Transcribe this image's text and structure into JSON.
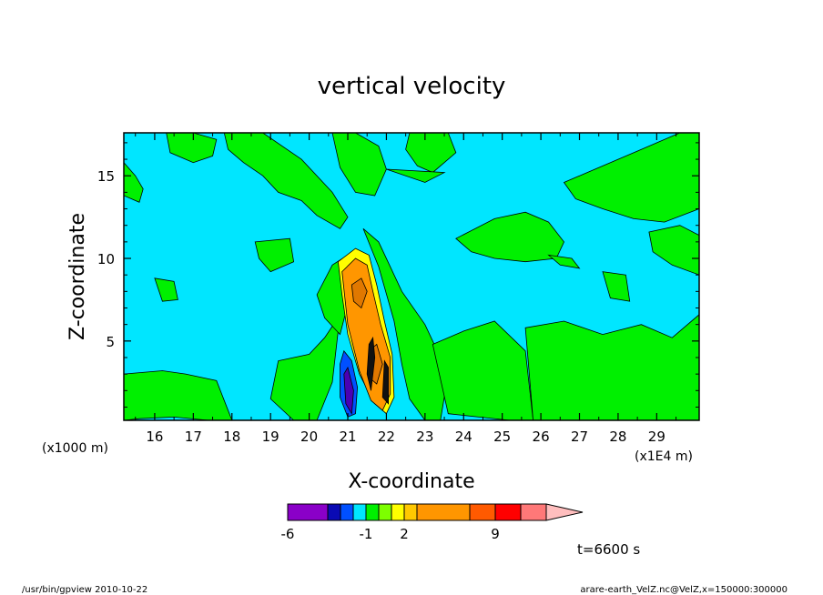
{
  "chart_data": {
    "type": "heatmap",
    "title": "vertical velocity",
    "xlabel": "X-coordinate",
    "ylabel": "Z-coordinate",
    "x_unit": "(x1E4 m)",
    "y_unit": "(x1000 m)",
    "xlim": [
      15.2,
      30.1
    ],
    "ylim": [
      0.2,
      17.6
    ],
    "x_ticks": [
      16,
      17,
      18,
      19,
      20,
      21,
      22,
      23,
      24,
      25,
      26,
      27,
      28,
      29
    ],
    "y_ticks": [
      5,
      10,
      15
    ],
    "time_label": "t=6600 s",
    "colorbar": {
      "colors": [
        "#8a00c8",
        "#0a0ab4",
        "#0050ff",
        "#00e6ff",
        "#00f000",
        "#7dff00",
        "#ffff00",
        "#ffc800",
        "#ff9600",
        "#ff5a00",
        "#ff0000",
        "#ff7878",
        "#ffbebe"
      ],
      "labels": [
        {
          "text": "-6",
          "value": -6
        },
        {
          "text": "-1",
          "value": -1
        },
        {
          "text": "2",
          "value": 2
        },
        {
          "text": "9",
          "value": 9
        }
      ]
    },
    "background_color": "#00e6ff",
    "regions": [
      {
        "level": "green",
        "color": "#00f000",
        "x": [
          15.2,
          15.5,
          15.7,
          15.6,
          15.2
        ],
        "y": [
          15.8,
          15.0,
          14.2,
          13.4,
          13.8
        ]
      },
      {
        "level": "green",
        "color": "#00f000",
        "x": [
          16.3,
          17.0,
          17.6,
          17.5,
          17.0,
          16.4
        ],
        "y": [
          17.6,
          17.6,
          17.2,
          16.2,
          15.8,
          16.4
        ]
      },
      {
        "level": "green",
        "color": "#00f000",
        "x": [
          17.8,
          18.8,
          19.8,
          20.6,
          21.0,
          20.8,
          20.2,
          19.8,
          19.2,
          18.8,
          18.3,
          17.9
        ],
        "y": [
          17.6,
          17.6,
          16.0,
          14.0,
          12.5,
          11.8,
          12.6,
          13.5,
          14.0,
          15.0,
          15.8,
          16.6
        ]
      },
      {
        "level": "green",
        "color": "#00f000",
        "x": [
          20.6,
          21.2,
          21.8,
          22.0,
          21.7,
          21.2,
          20.8
        ],
        "y": [
          17.6,
          17.6,
          16.8,
          15.4,
          13.8,
          14.0,
          15.5
        ]
      },
      {
        "level": "green",
        "color": "#00f000",
        "x": [
          22.6,
          23.6,
          23.8,
          23.2,
          22.8,
          22.5
        ],
        "y": [
          17.6,
          17.6,
          16.4,
          15.2,
          15.6,
          16.6
        ]
      },
      {
        "level": "green",
        "color": "#00f000",
        "x": [
          18.6,
          19.5,
          19.6,
          19.0,
          18.7
        ],
        "y": [
          11.0,
          11.2,
          9.8,
          9.2,
          10.0
        ]
      },
      {
        "level": "green",
        "color": "#00f000",
        "x": [
          16.0,
          16.5,
          16.6,
          16.2
        ],
        "y": [
          8.8,
          8.6,
          7.5,
          7.4
        ]
      },
      {
        "level": "green",
        "color": "#00f000",
        "x": [
          15.2,
          15.6,
          15.7,
          15.2
        ],
        "y": [
          1.8,
          2.6,
          0.5,
          0.2
        ]
      },
      {
        "level": "green",
        "color": "#00f000",
        "x": [
          15.2,
          16.2,
          16.8,
          17.6,
          18.0,
          17.4,
          16.5,
          15.6,
          15.2
        ],
        "y": [
          3.0,
          3.2,
          3.0,
          2.6,
          0.2,
          0.2,
          0.4,
          0.3,
          0.2
        ]
      },
      {
        "level": "green",
        "color": "#00f000",
        "x": [
          19.2,
          20.0,
          20.4,
          20.8,
          20.6,
          20.2,
          19.6,
          19.0
        ],
        "y": [
          3.8,
          4.2,
          5.2,
          6.6,
          2.5,
          0.2,
          0.2,
          1.5
        ]
      },
      {
        "level": "green",
        "color": "#00f000",
        "x": [
          20.2,
          20.4,
          20.8,
          21.2,
          21.0,
          20.6
        ],
        "y": [
          7.8,
          6.4,
          5.4,
          9.0,
          10.2,
          9.6
        ]
      },
      {
        "level": "green",
        "color": "#00f000",
        "x": [
          21.4,
          21.8,
          22.4,
          23.0,
          23.6,
          23.4,
          23.0,
          22.6,
          22.4,
          22.2,
          21.8
        ],
        "y": [
          11.8,
          11.0,
          8.0,
          6.0,
          3.0,
          0.2,
          0.2,
          1.5,
          3.6,
          6.2,
          9.5
        ]
      },
      {
        "level": "green",
        "color": "#00f000",
        "x": [
          23.2,
          24.0,
          24.8,
          25.6,
          25.8,
          25.2,
          24.4,
          23.6
        ],
        "y": [
          4.8,
          5.6,
          6.2,
          4.4,
          0.2,
          0.2,
          0.4,
          0.6
        ]
      },
      {
        "level": "green",
        "color": "#00f000",
        "x": [
          23.8,
          24.8,
          25.6,
          26.2,
          26.6,
          26.4,
          25.6,
          24.8,
          24.2
        ],
        "y": [
          11.2,
          12.4,
          12.8,
          12.2,
          11.0,
          10.0,
          9.8,
          10.0,
          10.4
        ]
      },
      {
        "level": "green",
        "color": "#00f000",
        "x": [
          26.6,
          27.4,
          28.6,
          29.6,
          30.1,
          30.1,
          29.2,
          28.4,
          27.6,
          26.9
        ],
        "y": [
          14.6,
          15.4,
          16.6,
          17.6,
          17.6,
          13.0,
          12.2,
          12.4,
          13.0,
          13.6
        ]
      },
      {
        "level": "green",
        "color": "#00f000",
        "x": [
          28.8,
          29.6,
          30.1,
          30.1,
          29.4,
          28.9
        ],
        "y": [
          11.6,
          12.0,
          11.4,
          9.0,
          9.6,
          10.4
        ]
      },
      {
        "level": "green",
        "color": "#00f000",
        "x": [
          26.2,
          26.8,
          27.0,
          26.5
        ],
        "y": [
          10.2,
          10.0,
          9.4,
          9.6
        ]
      },
      {
        "level": "green",
        "color": "#00f000",
        "x": [
          27.6,
          28.2,
          28.3,
          27.8
        ],
        "y": [
          9.2,
          9.0,
          7.4,
          7.6
        ]
      },
      {
        "level": "green",
        "color": "#00f000",
        "x": [
          25.6,
          26.6,
          27.6,
          28.6,
          29.4,
          30.1,
          30.1,
          29.0,
          27.8,
          26.6,
          25.8
        ],
        "y": [
          5.8,
          6.2,
          5.4,
          6.0,
          5.2,
          6.6,
          0.2,
          0.2,
          0.2,
          0.2,
          0.2
        ]
      },
      {
        "level": "green",
        "color": "#00f000",
        "x": [
          22.0,
          23.0,
          23.5
        ],
        "y": [
          15.4,
          14.6,
          15.2
        ]
      },
      {
        "level": "yellow",
        "color": "#ffff00",
        "x": [
          20.75,
          21.2,
          21.55,
          21.75,
          21.95,
          22.15,
          22.2,
          22.0,
          21.7,
          21.3,
          21.0,
          20.85
        ],
        "y": [
          9.8,
          10.6,
          10.2,
          8.4,
          6.2,
          4.2,
          1.6,
          0.6,
          1.2,
          3.0,
          5.4,
          7.8
        ]
      },
      {
        "level": "orange",
        "color": "#ff9600",
        "x": [
          20.85,
          21.2,
          21.5,
          21.65,
          21.85,
          22.1,
          22.1,
          21.9,
          21.6,
          21.3,
          21.0
        ],
        "y": [
          9.2,
          10.0,
          9.6,
          8.0,
          6.0,
          4.0,
          1.8,
          0.8,
          1.4,
          3.2,
          6.0
        ]
      },
      {
        "level": "dark-orange",
        "color": "#e07800",
        "x": [
          21.1,
          21.35,
          21.5,
          21.35,
          21.15
        ],
        "y": [
          8.4,
          8.8,
          8.0,
          7.0,
          7.4
        ]
      },
      {
        "level": "dark-orange",
        "color": "#e07800",
        "x": [
          21.55,
          21.75,
          21.9,
          21.75,
          21.55
        ],
        "y": [
          4.4,
          4.8,
          3.6,
          2.4,
          2.8
        ]
      },
      {
        "level": "black",
        "color": "#111111",
        "x": [
          21.55,
          21.65,
          21.7,
          21.6,
          21.5
        ],
        "y": [
          4.8,
          5.2,
          4.0,
          2.0,
          3.0
        ]
      },
      {
        "level": "black",
        "color": "#111111",
        "x": [
          21.95,
          22.05,
          22.05,
          21.9
        ],
        "y": [
          3.8,
          3.4,
          1.2,
          1.6
        ]
      },
      {
        "level": "negative-blue",
        "color": "#0050ff",
        "x": [
          20.8,
          20.9,
          21.1,
          21.25,
          21.2,
          21.0,
          20.8
        ],
        "y": [
          3.6,
          4.4,
          3.8,
          2.2,
          0.6,
          0.4,
          1.6
        ]
      },
      {
        "level": "negative-purple",
        "color": "#4a00b4",
        "x": [
          20.9,
          21.0,
          21.15,
          21.1,
          20.95
        ],
        "y": [
          3.0,
          3.4,
          2.0,
          0.6,
          1.2
        ]
      }
    ]
  },
  "footer": {
    "left": "/usr/bin/gpview   2010-10-22",
    "right": "arare-earth_VelZ.nc@VelZ,x=150000:300000"
  }
}
